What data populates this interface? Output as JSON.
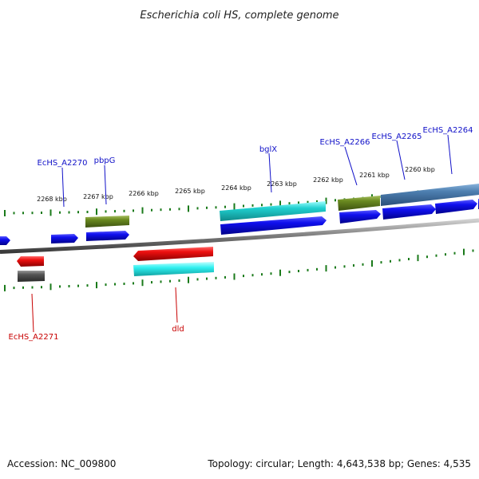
{
  "title": "Escherichia coli HS, complete genome",
  "kbp_ticks": [
    "2268 kbp",
    "2267 kbp",
    "2266 kbp",
    "2265 kbp",
    "2264 kbp",
    "2263 kbp",
    "2262 kbp",
    "2261 kbp",
    "2260 kbp"
  ],
  "gene_labels": {
    "EcHS_A2270": "EcHS_A2270",
    "pbpG": "pbpG",
    "bglX": "bglX",
    "EcHS_A2266": "EcHS_A2266",
    "EcHS_A2265": "EcHS_A2265",
    "EcHS_A2264": "EcHS_A2264",
    "EcHS_A2271": "EcHS_A2271",
    "dld": "dld"
  },
  "colors": {
    "forward_label": "#1010c8",
    "reverse_label": "#c80000",
    "cds_blue": "#1010ee",
    "cds_red": "#ee1010",
    "cds_olive": "#6a8a20",
    "cds_cyan": "#20d0d0",
    "cds_grey": "#555555",
    "cds_steel": "#4d7fb0",
    "tick_green": "#1a7a1a",
    "backbone": "#777777"
  },
  "footer": {
    "accession": "Accession: NC_009800",
    "summary": "Topology: circular; Length: 4,643,538 bp; Genes: 4,535"
  }
}
